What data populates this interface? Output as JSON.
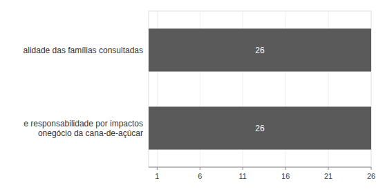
{
  "chart_data": {
    "type": "bar",
    "orientation": "horizontal",
    "categories": [
      "alidade das famílias consultadas",
      "e responsabilidade por impactos\nonegócio da cana-de-açúcar"
    ],
    "values": [
      26,
      26
    ],
    "color": "#5a5a5a",
    "xlim": [
      0,
      26
    ],
    "xticks": [
      1,
      6,
      11,
      16,
      21,
      26
    ],
    "data_labels": true
  }
}
